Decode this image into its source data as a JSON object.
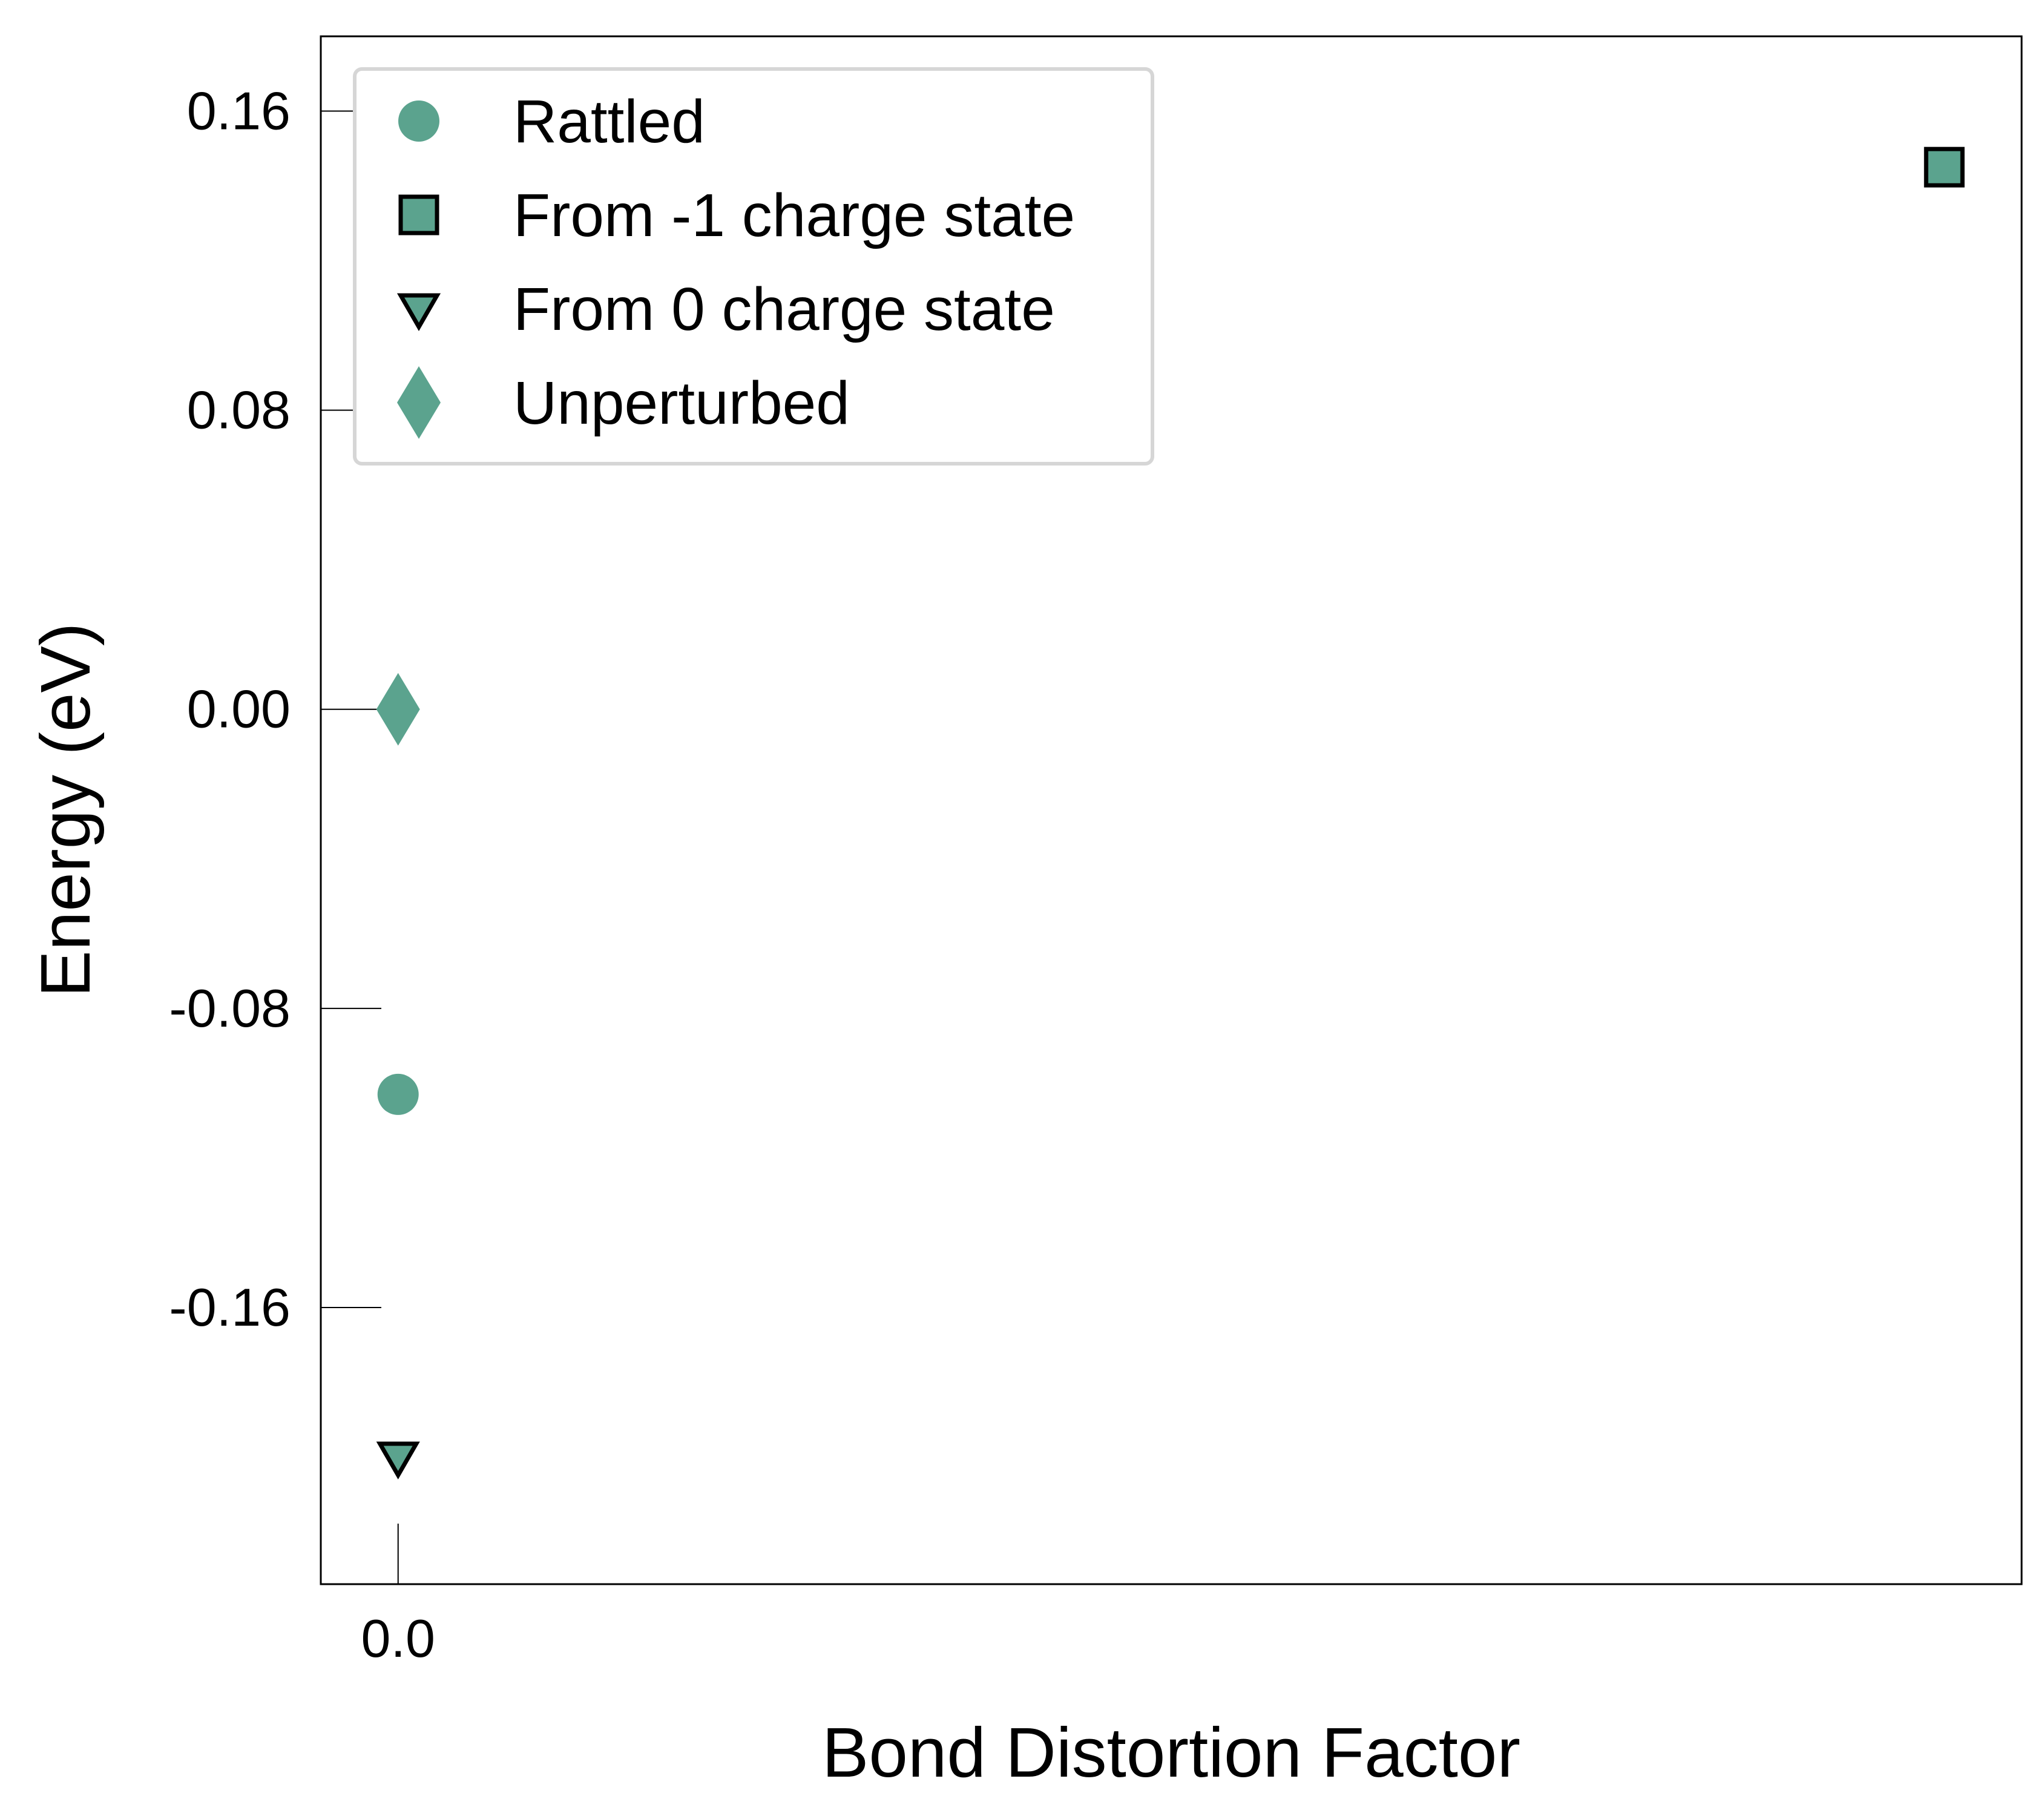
{
  "chart_data": {
    "type": "scatter",
    "title": "",
    "xlabel": "Bond Distortion Factor",
    "ylabel": "Energy (eV)",
    "x_ticks": [
      {
        "value": 0.0,
        "label": "0.0"
      }
    ],
    "y_ticks": [
      {
        "value": 0.16,
        "label": "0.16"
      },
      {
        "value": 0.08,
        "label": "0.08"
      },
      {
        "value": 0.0,
        "label": "0.00"
      },
      {
        "value": -0.08,
        "label": "-0.08"
      },
      {
        "value": -0.16,
        "label": "-0.16"
      }
    ],
    "xlim": [
      -0.05,
      1.05
    ],
    "ylim": [
      -0.234,
      0.18
    ],
    "grid": false,
    "legend_position": "top-left",
    "colors": {
      "marker_fill": "#5ba38e",
      "marker_edge": "#000000",
      "axes": "#000000"
    },
    "series": [
      {
        "name": "Rattled",
        "marker": "circle",
        "edge": false,
        "points": [
          {
            "x": 0.0,
            "y": -0.103
          }
        ]
      },
      {
        "name": "From -1 charge state",
        "marker": "square",
        "edge": true,
        "points": [
          {
            "x": 1.0,
            "y": 0.145
          }
        ]
      },
      {
        "name": "From 0 charge state",
        "marker": "triangle-down",
        "edge": true,
        "points": [
          {
            "x": 0.0,
            "y": -0.2
          }
        ]
      },
      {
        "name": "Unperturbed",
        "marker": "diamond",
        "edge": false,
        "points": [
          {
            "x": 0.0,
            "y": 0.0
          }
        ]
      }
    ]
  }
}
